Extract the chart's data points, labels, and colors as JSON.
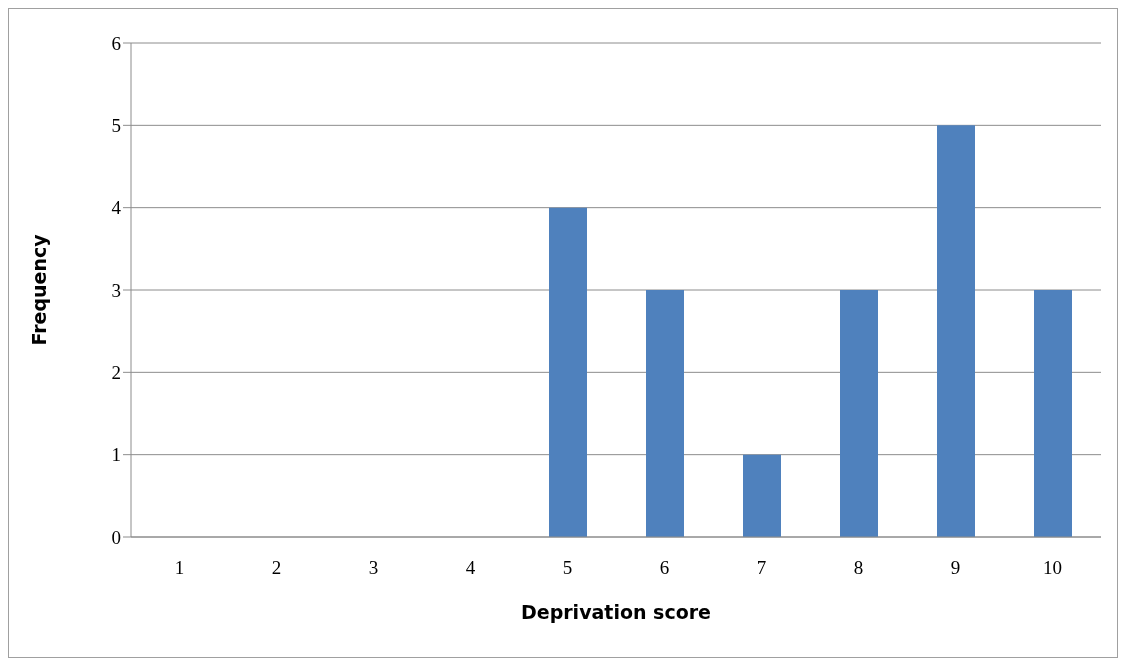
{
  "chart_data": {
    "type": "bar",
    "xlabel": "Deprivation score",
    "ylabel": "Frequency",
    "categories": [
      "1",
      "2",
      "3",
      "4",
      "5",
      "6",
      "7",
      "8",
      "9",
      "10"
    ],
    "values": [
      0,
      0,
      0,
      0,
      4,
      3,
      1,
      3,
      5,
      3
    ],
    "color": "#4f81bd",
    "ylim": [
      0,
      6
    ],
    "yticks": [
      0,
      1,
      2,
      3,
      4,
      5,
      6
    ],
    "grid": "y"
  }
}
